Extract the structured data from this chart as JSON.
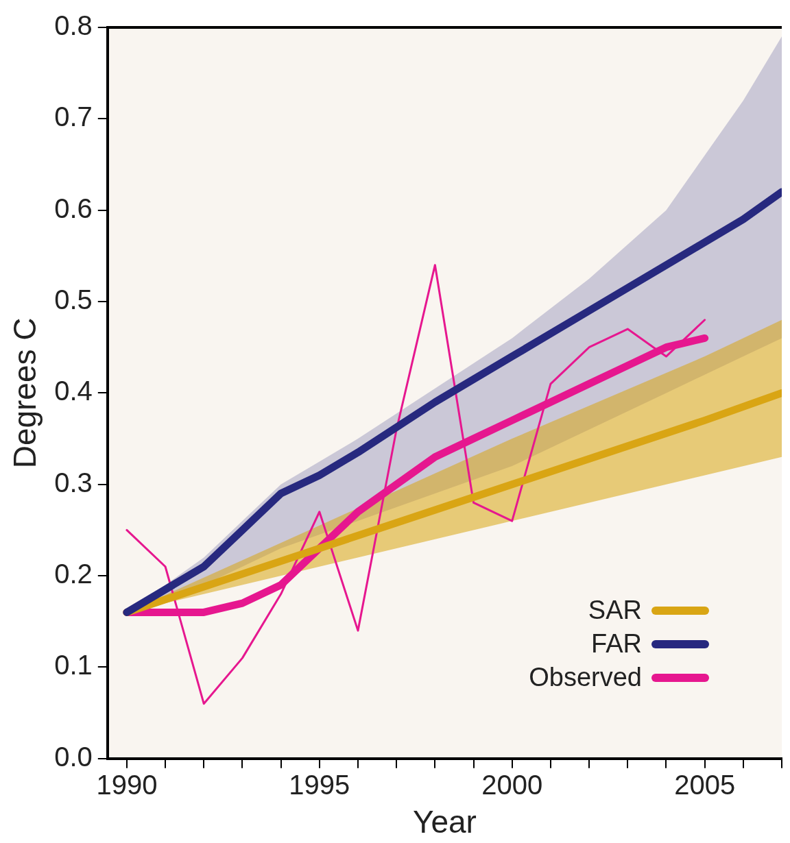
{
  "chart_data": {
    "type": "line",
    "xlabel": "Year",
    "ylabel": "Degrees C",
    "xlim": [
      1989.5,
      2007
    ],
    "ylim": [
      0,
      0.8
    ],
    "xticks": [
      1990,
      {
        "value": 1991,
        "label": null
      },
      {
        "value": 1992,
        "label": null
      },
      {
        "value": 1993,
        "label": null
      },
      {
        "value": 1994,
        "label": null
      },
      1995,
      {
        "value": 1996,
        "label": null
      },
      {
        "value": 1997,
        "label": null
      },
      {
        "value": 1998,
        "label": null
      },
      {
        "value": 1999,
        "label": null
      },
      2000,
      {
        "value": 2001,
        "label": null
      },
      {
        "value": 2002,
        "label": null
      },
      {
        "value": 2003,
        "label": null
      },
      {
        "value": 2004,
        "label": null
      },
      2005,
      {
        "value": 2006,
        "label": null
      },
      {
        "value": 2007,
        "label": null
      }
    ],
    "yticks": [
      {
        "value": 0,
        "label": "0.0"
      },
      0.1,
      0.2,
      0.3,
      0.4,
      0.5,
      0.6,
      0.7,
      0.8
    ],
    "grid": false,
    "legend": "bottom right",
    "marker": "none",
    "line_style": "solid",
    "series": [
      {
        "name": "FAR",
        "color": "#27297f",
        "x": [
          1990,
          1992,
          1993,
          1994,
          1995,
          1996,
          1998,
          2000,
          2002,
          2004,
          2006,
          2007
        ],
        "values": [
          0.16,
          0.21,
          0.25,
          0.29,
          0.31,
          0.335,
          0.39,
          0.44,
          0.49,
          0.54,
          0.59,
          0.62
        ],
        "lower": [
          0.16,
          0.19,
          0.21,
          0.23,
          0.245,
          0.26,
          0.29,
          0.32,
          0.36,
          0.4,
          0.44,
          0.46
        ],
        "upper": [
          0.16,
          0.22,
          0.26,
          0.3,
          0.325,
          0.35,
          0.405,
          0.46,
          0.525,
          0.6,
          0.72,
          0.79
        ]
      },
      {
        "name": "SAR",
        "color": "#d9a514",
        "x": [
          1990,
          1995,
          2000,
          2005,
          2007
        ],
        "values": [
          0.16,
          0.23,
          0.3,
          0.37,
          0.4
        ],
        "lower": [
          0.16,
          0.21,
          0.26,
          0.31,
          0.33
        ],
        "upper": [
          0.16,
          0.255,
          0.35,
          0.44,
          0.48
        ]
      },
      {
        "color": "#e6178f",
        "x": [
          1990,
          1991,
          1992,
          1993,
          1994,
          1995,
          1996,
          1997,
          1998,
          1999,
          2000,
          2001,
          2002,
          2003,
          2004,
          2005
        ],
        "values": [
          0.25,
          0.21,
          0.06,
          0.11,
          0.18,
          0.27,
          0.14,
          0.36,
          0.54,
          0.28,
          0.26,
          0.41,
          0.45,
          0.47,
          0.44,
          0.48
        ]
      },
      {
        "name": "Observed",
        "color": "#e6178f",
        "x": [
          1990,
          1991,
          1992,
          1993,
          1994,
          1995,
          1996,
          1997,
          1998,
          1999,
          2000,
          2001,
          2002,
          2003,
          2004,
          2005
        ],
        "values": [
          0.16,
          0.16,
          0.16,
          0.17,
          0.19,
          0.23,
          0.27,
          0.3,
          0.33,
          0.35,
          0.37,
          0.39,
          0.41,
          0.43,
          0.45,
          0.46
        ]
      }
    ]
  }
}
